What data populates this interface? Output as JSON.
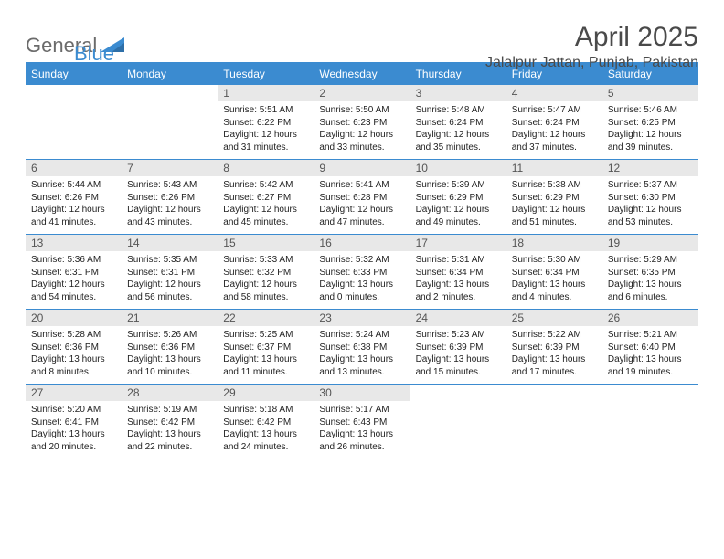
{
  "logo": {
    "text_gray": "General",
    "text_blue": "Blue",
    "gray_color": "#6b6b6b",
    "blue_color": "#3b8bd0"
  },
  "header": {
    "title": "April 2025",
    "location": "Jalalpur Jattan, Punjab, Pakistan"
  },
  "style": {
    "header_bg": "#3b8bd0",
    "header_text": "#ffffff",
    "daynum_bg": "#e8e8e8",
    "daynum_text": "#555555",
    "rule_color": "#3b8bd0",
    "body_font_size": 10,
    "daynum_font_size": 12,
    "th_font_size": 12,
    "title_font_size": 30,
    "location_font_size": 16
  },
  "weekdays": [
    "Sunday",
    "Monday",
    "Tuesday",
    "Wednesday",
    "Thursday",
    "Friday",
    "Saturday"
  ],
  "weeks": [
    [
      null,
      null,
      {
        "n": "1",
        "sr": "5:51 AM",
        "ss": "6:22 PM",
        "d1": "12 hours",
        "d2": "and 31 minutes."
      },
      {
        "n": "2",
        "sr": "5:50 AM",
        "ss": "6:23 PM",
        "d1": "12 hours",
        "d2": "and 33 minutes."
      },
      {
        "n": "3",
        "sr": "5:48 AM",
        "ss": "6:24 PM",
        "d1": "12 hours",
        "d2": "and 35 minutes."
      },
      {
        "n": "4",
        "sr": "5:47 AM",
        "ss": "6:24 PM",
        "d1": "12 hours",
        "d2": "and 37 minutes."
      },
      {
        "n": "5",
        "sr": "5:46 AM",
        "ss": "6:25 PM",
        "d1": "12 hours",
        "d2": "and 39 minutes."
      }
    ],
    [
      {
        "n": "6",
        "sr": "5:44 AM",
        "ss": "6:26 PM",
        "d1": "12 hours",
        "d2": "and 41 minutes."
      },
      {
        "n": "7",
        "sr": "5:43 AM",
        "ss": "6:26 PM",
        "d1": "12 hours",
        "d2": "and 43 minutes."
      },
      {
        "n": "8",
        "sr": "5:42 AM",
        "ss": "6:27 PM",
        "d1": "12 hours",
        "d2": "and 45 minutes."
      },
      {
        "n": "9",
        "sr": "5:41 AM",
        "ss": "6:28 PM",
        "d1": "12 hours",
        "d2": "and 47 minutes."
      },
      {
        "n": "10",
        "sr": "5:39 AM",
        "ss": "6:29 PM",
        "d1": "12 hours",
        "d2": "and 49 minutes."
      },
      {
        "n": "11",
        "sr": "5:38 AM",
        "ss": "6:29 PM",
        "d1": "12 hours",
        "d2": "and 51 minutes."
      },
      {
        "n": "12",
        "sr": "5:37 AM",
        "ss": "6:30 PM",
        "d1": "12 hours",
        "d2": "and 53 minutes."
      }
    ],
    [
      {
        "n": "13",
        "sr": "5:36 AM",
        "ss": "6:31 PM",
        "d1": "12 hours",
        "d2": "and 54 minutes."
      },
      {
        "n": "14",
        "sr": "5:35 AM",
        "ss": "6:31 PM",
        "d1": "12 hours",
        "d2": "and 56 minutes."
      },
      {
        "n": "15",
        "sr": "5:33 AM",
        "ss": "6:32 PM",
        "d1": "12 hours",
        "d2": "and 58 minutes."
      },
      {
        "n": "16",
        "sr": "5:32 AM",
        "ss": "6:33 PM",
        "d1": "13 hours",
        "d2": "and 0 minutes."
      },
      {
        "n": "17",
        "sr": "5:31 AM",
        "ss": "6:34 PM",
        "d1": "13 hours",
        "d2": "and 2 minutes."
      },
      {
        "n": "18",
        "sr": "5:30 AM",
        "ss": "6:34 PM",
        "d1": "13 hours",
        "d2": "and 4 minutes."
      },
      {
        "n": "19",
        "sr": "5:29 AM",
        "ss": "6:35 PM",
        "d1": "13 hours",
        "d2": "and 6 minutes."
      }
    ],
    [
      {
        "n": "20",
        "sr": "5:28 AM",
        "ss": "6:36 PM",
        "d1": "13 hours",
        "d2": "and 8 minutes."
      },
      {
        "n": "21",
        "sr": "5:26 AM",
        "ss": "6:36 PM",
        "d1": "13 hours",
        "d2": "and 10 minutes."
      },
      {
        "n": "22",
        "sr": "5:25 AM",
        "ss": "6:37 PM",
        "d1": "13 hours",
        "d2": "and 11 minutes."
      },
      {
        "n": "23",
        "sr": "5:24 AM",
        "ss": "6:38 PM",
        "d1": "13 hours",
        "d2": "and 13 minutes."
      },
      {
        "n": "24",
        "sr": "5:23 AM",
        "ss": "6:39 PM",
        "d1": "13 hours",
        "d2": "and 15 minutes."
      },
      {
        "n": "25",
        "sr": "5:22 AM",
        "ss": "6:39 PM",
        "d1": "13 hours",
        "d2": "and 17 minutes."
      },
      {
        "n": "26",
        "sr": "5:21 AM",
        "ss": "6:40 PM",
        "d1": "13 hours",
        "d2": "and 19 minutes."
      }
    ],
    [
      {
        "n": "27",
        "sr": "5:20 AM",
        "ss": "6:41 PM",
        "d1": "13 hours",
        "d2": "and 20 minutes."
      },
      {
        "n": "28",
        "sr": "5:19 AM",
        "ss": "6:42 PM",
        "d1": "13 hours",
        "d2": "and 22 minutes."
      },
      {
        "n": "29",
        "sr": "5:18 AM",
        "ss": "6:42 PM",
        "d1": "13 hours",
        "d2": "and 24 minutes."
      },
      {
        "n": "30",
        "sr": "5:17 AM",
        "ss": "6:43 PM",
        "d1": "13 hours",
        "d2": "and 26 minutes."
      },
      null,
      null,
      null
    ]
  ]
}
